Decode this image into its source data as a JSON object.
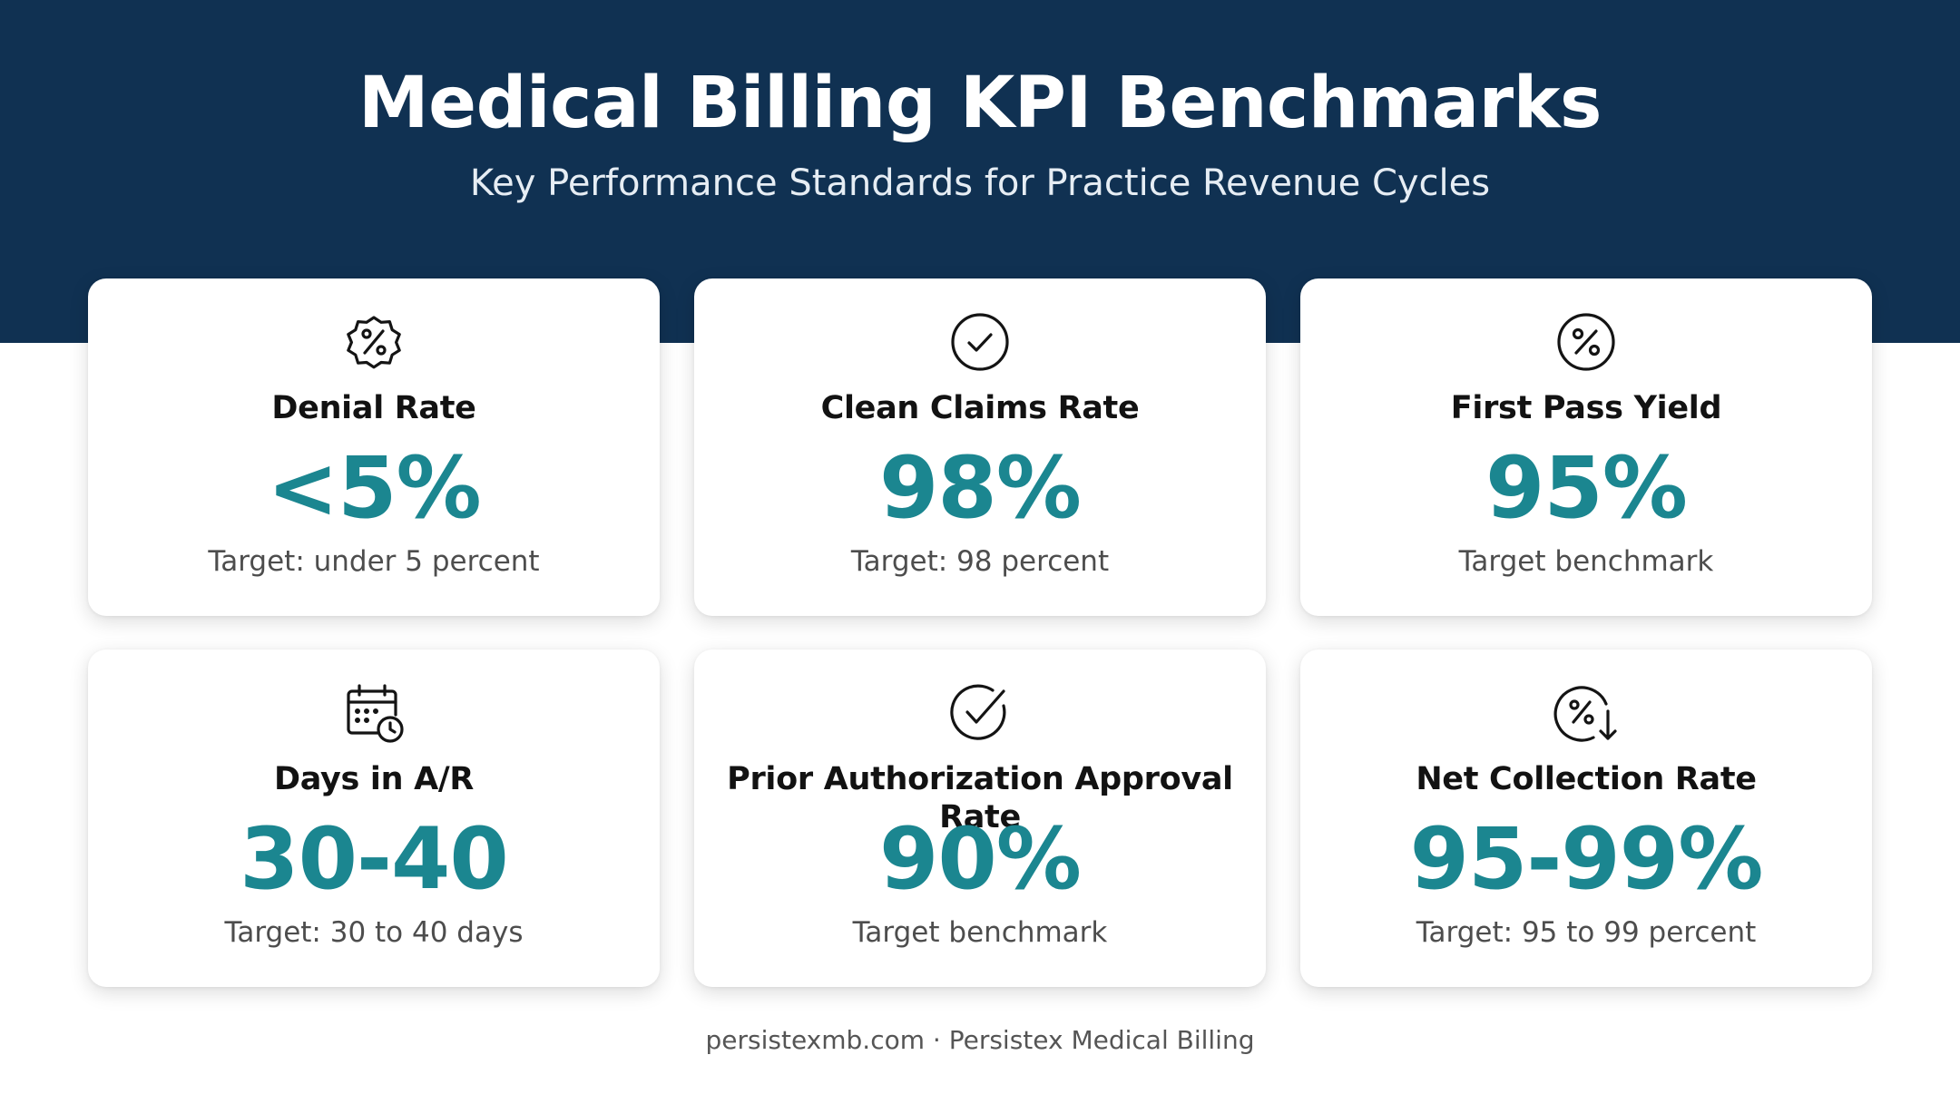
{
  "header": {
    "title": "Medical Billing KPI Benchmarks",
    "subtitle": "Key Performance Standards for Practice Revenue Cycles",
    "background_color": "#103152"
  },
  "accent_color": "#1b8690",
  "cards": [
    {
      "icon": "percent-badge-icon",
      "label": "Denial Rate",
      "value": "<5%",
      "note": "Target: under 5 percent"
    },
    {
      "icon": "check-circle-icon",
      "label": "Clean Claims Rate",
      "value": "98%",
      "note": "Target: 98 percent"
    },
    {
      "icon": "percent-circle-icon",
      "label": "First Pass Yield",
      "value": "95%",
      "note": "Target benchmark"
    },
    {
      "icon": "calendar-clock-icon",
      "label": "Days in A/R",
      "value": "30-40",
      "note": "Target: 30 to 40 days"
    },
    {
      "icon": "check-circle-icon",
      "label": "Prior Authorization Approval Rate",
      "value": "90%",
      "note": "Target benchmark"
    },
    {
      "icon": "percent-down-arrow-icon",
      "label": "Net Collection Rate",
      "value": "95-99%",
      "note": "Target: 95 to 99 percent"
    }
  ],
  "footer": {
    "text": "persistexmb.com · Persistex Medical Billing"
  }
}
